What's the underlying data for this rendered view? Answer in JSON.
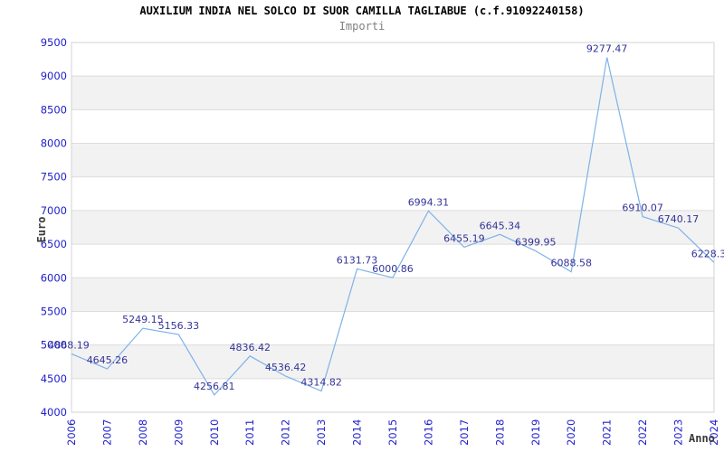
{
  "title": "AUXILIUM INDIA NEL SOLCO DI SUOR CAMILLA TAGLIABUE (c.f.91092240158)",
  "subtitle": "Importi",
  "y_axis": {
    "label": "Euro",
    "ticks": [
      "9500",
      "9000",
      "8500",
      "8000",
      "7500",
      "7000",
      "6500",
      "6000",
      "5500",
      "5000",
      "4500",
      "4000"
    ]
  },
  "x_axis": {
    "label": "Anno",
    "ticks": [
      "2006",
      "2007",
      "2008",
      "2009",
      "2010",
      "2011",
      "2012",
      "2013",
      "2014",
      "2015",
      "2016",
      "2017",
      "2018",
      "2019",
      "2020",
      "2021",
      "2022",
      "2023",
      "2024"
    ]
  },
  "chart_data": {
    "type": "line",
    "title": "AUXILIUM INDIA NEL SOLCO DI SUOR CAMILLA TAGLIABUE (c.f.91092240158)",
    "subtitle": "Importi",
    "xlabel": "Anno",
    "ylabel": "Euro",
    "x": [
      2006,
      2007,
      2008,
      2009,
      2010,
      2011,
      2012,
      2013,
      2014,
      2015,
      2016,
      2017,
      2018,
      2019,
      2020,
      2021,
      2022,
      2023,
      2024
    ],
    "series": [
      {
        "name": "Importi",
        "values": [
          4868.19,
          4645.26,
          5249.15,
          5156.33,
          4256.81,
          4836.42,
          4536.42,
          4314.82,
          6131.73,
          6000.86,
          6994.31,
          6455.19,
          6645.34,
          6399.95,
          6088.58,
          9277.47,
          6910.07,
          6740.17,
          6228.3
        ]
      }
    ],
    "point_labels": [
      "4868.19",
      "4645.26",
      "5249.15",
      "5156.33",
      "4256.81",
      "4836.42",
      "4536.42",
      "4314.82",
      "6131.73",
      "6000.86",
      "6994.31",
      "6455.19",
      "6645.34",
      "6399.95",
      "6088.58",
      "9277.47",
      "6910.07",
      "6740.17",
      "6228.3"
    ],
    "ylim": [
      4000,
      9500
    ],
    "ytick_step": 500,
    "grid": "horizontal",
    "banding": "alternating horizontal 500-unit bands, white first from top",
    "legend": "none",
    "colors": {
      "line": "#7eb2e8",
      "point_label": "#333399",
      "axis_tick_label": "#2020cc",
      "band": "#f2f2f2",
      "gridline": "#dcdcdc",
      "plot_border": "#d3d3d3",
      "title": "#000000",
      "subtitle": "#808080",
      "axis_title": "#3a3a3a",
      "background": "#ffffff"
    }
  }
}
